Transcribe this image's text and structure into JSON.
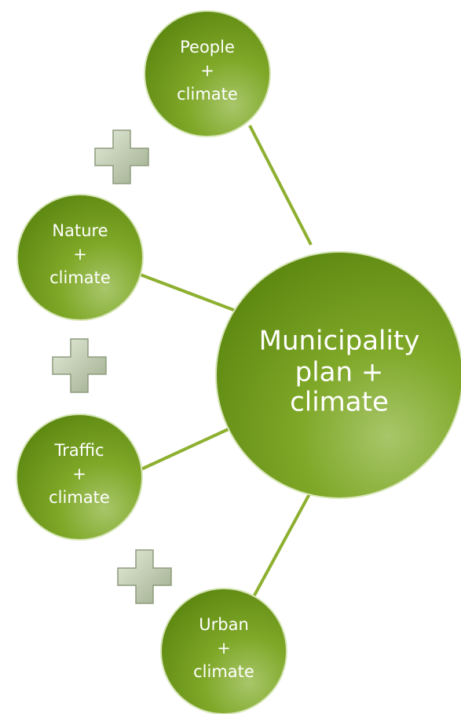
{
  "center": {
    "lines": [
      "Municipality",
      "plan +",
      "climate"
    ]
  },
  "nodes": [
    {
      "lines": [
        "People",
        "+",
        "climate"
      ]
    },
    {
      "lines": [
        "Nature",
        "+",
        "climate"
      ]
    },
    {
      "lines": [
        "Traffic",
        "+",
        "climate"
      ]
    },
    {
      "lines": [
        "Urban",
        "+",
        "climate"
      ]
    }
  ]
}
